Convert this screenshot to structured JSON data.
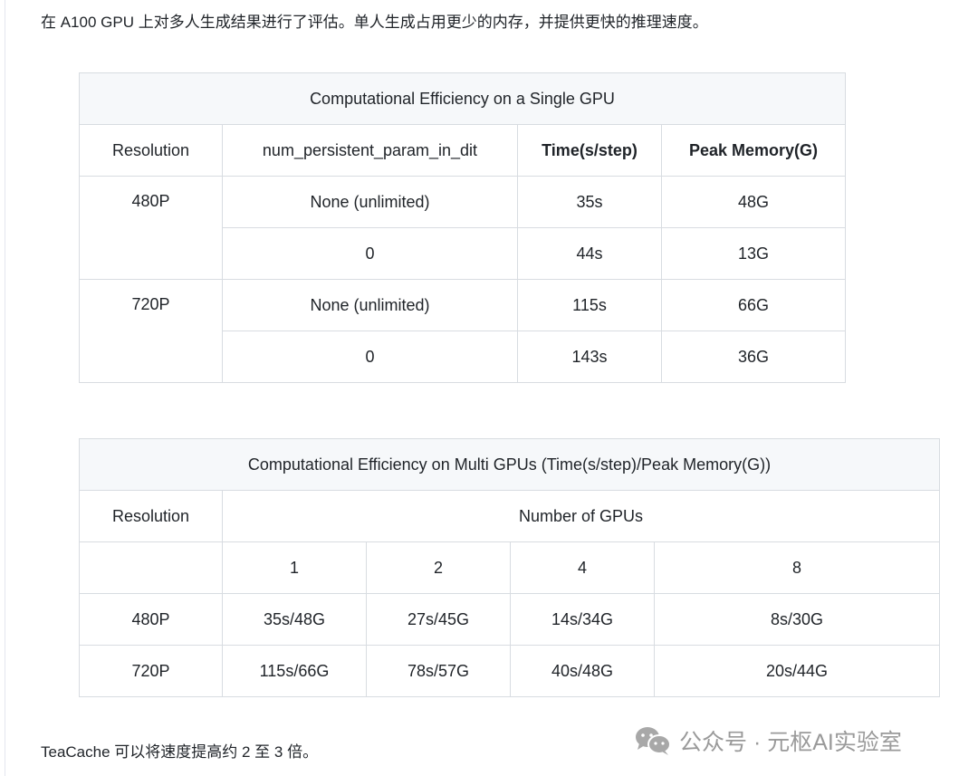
{
  "intro": "在 A100 GPU 上对多人生成结果进行了评估。单人生成占用更少的内存，并提供更快的推理速度。",
  "table1": {
    "title": "Computational Efficiency on a Single GPU",
    "headers": [
      "Resolution",
      "num_persistent_param_in_dit",
      "Time(s/step)",
      "Peak Memory(G)"
    ],
    "groups": [
      {
        "resolution": "480P",
        "rows": [
          [
            "None (unlimited)",
            "35s",
            "48G"
          ],
          [
            "0",
            "44s",
            "13G"
          ]
        ]
      },
      {
        "resolution": "720P",
        "rows": [
          [
            "None (unlimited)",
            "115s",
            "66G"
          ],
          [
            "0",
            "143s",
            "36G"
          ]
        ]
      }
    ]
  },
  "table2": {
    "title": "Computational Efficiency on Multi GPUs (Time(s/step)/Peak Memory(G))",
    "header_resolution": "Resolution",
    "header_gpus": "Number of GPUs",
    "gpu_counts": [
      "1",
      "2",
      "4",
      "8"
    ],
    "rows": [
      {
        "resolution": "480P",
        "values": [
          "35s/48G",
          "27s/45G",
          "14s/34G",
          "8s/30G"
        ]
      },
      {
        "resolution": "720P",
        "values": [
          "115s/66G",
          "78s/57G",
          "40s/48G",
          "20s/44G"
        ]
      }
    ]
  },
  "outro": "TeaCache 可以将速度提高约 2 至 3 倍。",
  "watermark": {
    "icon": "wechat-icon",
    "text": "公众号 · 元枢AI实验室"
  }
}
